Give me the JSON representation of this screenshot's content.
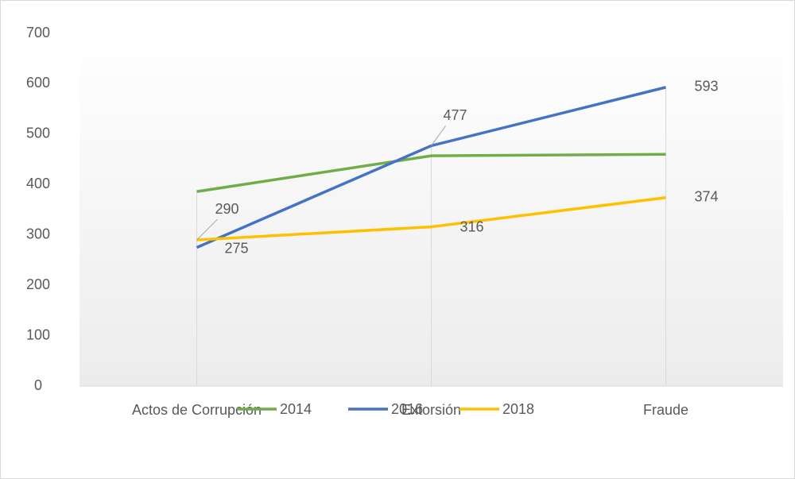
{
  "chart_data": {
    "type": "line",
    "categories": [
      "Actos de Corrupción",
      "Extorsión",
      "Fraude"
    ],
    "series": [
      {
        "name": "2014",
        "color": "#70ad47",
        "values": [
          386,
          457,
          460
        ],
        "data_labels": false
      },
      {
        "name": "2016",
        "color": "#4472c4",
        "values": [
          275,
          477,
          593
        ],
        "data_labels": true
      },
      {
        "name": "2018",
        "color": "#ffc000",
        "values": [
          290,
          316,
          374
        ],
        "data_labels": true
      }
    ],
    "ylim": [
      0,
      700
    ],
    "yticks": [
      0,
      100,
      200,
      300,
      400,
      500,
      600,
      700
    ],
    "grid": false,
    "drop_lines": true,
    "legend": "bottom"
  }
}
